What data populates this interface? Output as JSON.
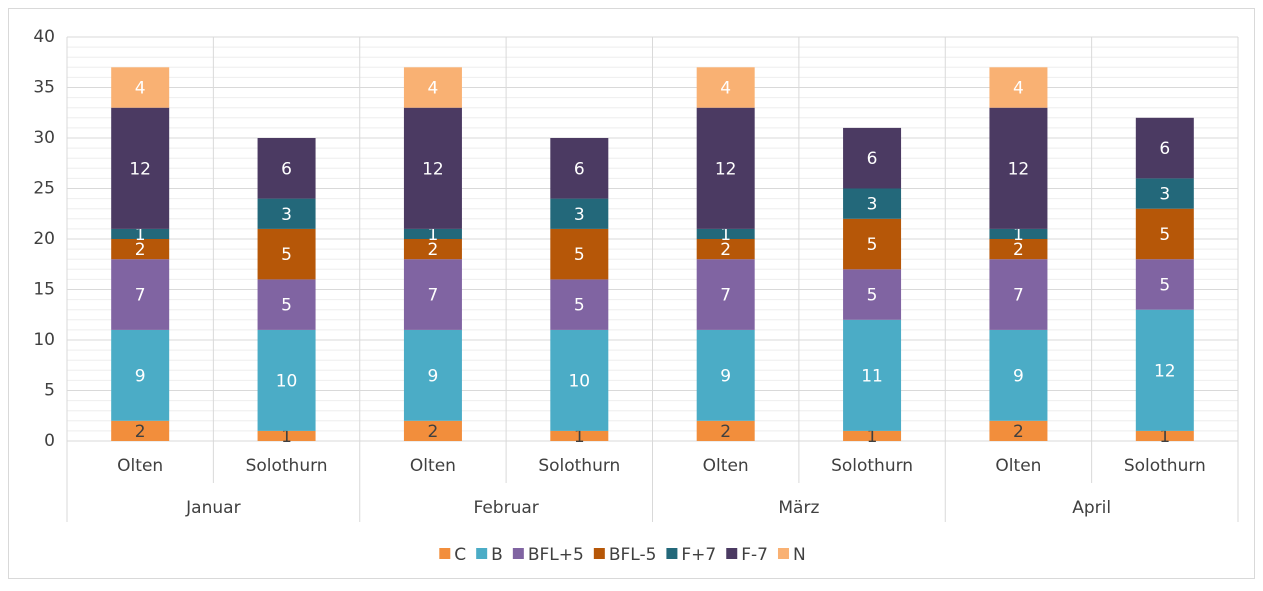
{
  "chart_data": {
    "type": "stacked_bar",
    "groups": [
      {
        "name": "Januar",
        "categories": [
          "Olten",
          "Solothurn"
        ]
      },
      {
        "name": "Februar",
        "categories": [
          "Olten",
          "Solothurn"
        ]
      },
      {
        "name": "März",
        "categories": [
          "Olten",
          "Solothurn"
        ]
      },
      {
        "name": "April",
        "categories": [
          "Olten",
          "Solothurn"
        ]
      }
    ],
    "series": [
      {
        "name": "C",
        "color": "#f28e3c",
        "values": [
          2,
          1,
          2,
          1,
          2,
          1,
          2,
          1
        ]
      },
      {
        "name": "B",
        "color": "#4bacc6",
        "values": [
          9,
          10,
          9,
          10,
          9,
          11,
          9,
          12
        ]
      },
      {
        "name": "BFL+5",
        "color": "#8064a2",
        "values": [
          7,
          5,
          7,
          5,
          7,
          5,
          7,
          5
        ]
      },
      {
        "name": "BFL-5",
        "color": "#b65708",
        "values": [
          2,
          5,
          2,
          5,
          2,
          5,
          2,
          5
        ]
      },
      {
        "name": "F+7",
        "color": "#23687a",
        "values": [
          1,
          3,
          1,
          3,
          1,
          3,
          1,
          3
        ]
      },
      {
        "name": "F-7",
        "color": "#4b3a62",
        "values": [
          12,
          6,
          12,
          6,
          12,
          6,
          12,
          6
        ]
      },
      {
        "name": "N",
        "color": "#f9b173",
        "values": [
          4,
          null,
          4,
          null,
          4,
          null,
          4,
          null
        ]
      }
    ],
    "ylim": [
      0,
      40
    ],
    "yticks": [
      0,
      5,
      10,
      15,
      20,
      25,
      30,
      35,
      40
    ],
    "grid": true,
    "minor_grid_step": 1,
    "legend": "bottom"
  }
}
